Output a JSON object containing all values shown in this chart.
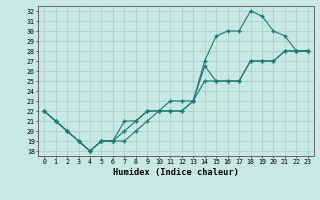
{
  "xlabel": "Humidex (Indice chaleur)",
  "xlim": [
    -0.5,
    23.5
  ],
  "ylim": [
    17.5,
    32.5
  ],
  "yticks": [
    18,
    19,
    20,
    21,
    22,
    23,
    24,
    25,
    26,
    27,
    28,
    29,
    30,
    31,
    32
  ],
  "xticks": [
    0,
    1,
    2,
    3,
    4,
    5,
    6,
    7,
    8,
    9,
    10,
    11,
    12,
    13,
    14,
    15,
    16,
    17,
    18,
    19,
    20,
    21,
    22,
    23
  ],
  "bg_color": "#c8e8e4",
  "line_color": "#1a7a6e",
  "grid_color": "#a8ccc8",
  "series": [
    {
      "x": [
        0,
        1,
        2,
        3,
        4,
        5,
        6,
        7,
        8,
        9,
        10,
        11,
        12,
        13,
        14,
        15,
        16,
        17,
        18,
        19,
        20,
        21,
        22,
        23
      ],
      "y": [
        22,
        21,
        20,
        19,
        18,
        19,
        19,
        19,
        20,
        21,
        22,
        22,
        22,
        23,
        25,
        25,
        25,
        25,
        27,
        27,
        27,
        28,
        28,
        28
      ]
    },
    {
      "x": [
        0,
        1,
        2,
        3,
        4,
        5,
        6,
        7,
        8,
        9,
        10,
        11,
        12,
        13,
        14,
        15,
        16,
        17,
        18,
        19,
        20,
        21,
        22,
        23
      ],
      "y": [
        22,
        21,
        20,
        19,
        18,
        19,
        19,
        20,
        21,
        22,
        22,
        23,
        23,
        23,
        27,
        29.5,
        30,
        30,
        32,
        31.5,
        30,
        29.5,
        28,
        28
      ]
    },
    {
      "x": [
        0,
        1,
        2,
        3,
        4,
        5,
        6,
        7,
        8,
        9,
        10,
        11,
        12,
        13,
        14,
        15,
        16,
        17,
        18,
        19,
        20,
        21,
        22,
        23
      ],
      "y": [
        22,
        21,
        20,
        19,
        18,
        19,
        19,
        21,
        21,
        22,
        22,
        22,
        22,
        23,
        26.5,
        25,
        25,
        25,
        27,
        27,
        27,
        28,
        28,
        28
      ]
    }
  ]
}
